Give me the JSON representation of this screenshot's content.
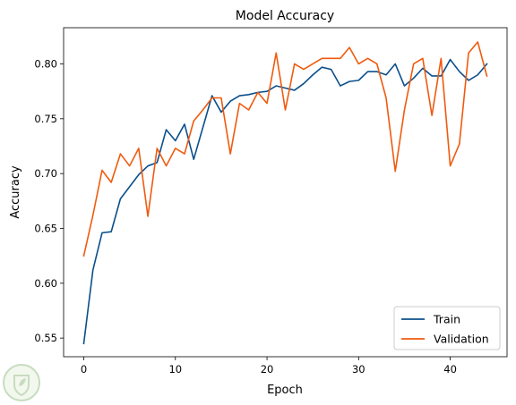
{
  "chart_data": {
    "type": "line",
    "title": "Model Accuracy",
    "xlabel": "Epoch",
    "ylabel": "Accuracy",
    "xlim": [
      -2.2,
      46.2
    ],
    "ylim": [
      0.533,
      0.833
    ],
    "x_ticks": [
      0,
      10,
      20,
      30,
      40
    ],
    "y_ticks": [
      0.55,
      0.6,
      0.65,
      0.7,
      0.75,
      0.8
    ],
    "y_tick_labels": [
      "0.55",
      "0.60",
      "0.65",
      "0.70",
      "0.75",
      "0.80"
    ],
    "grid": false,
    "legend_position": "lower-right",
    "x": [
      0,
      1,
      2,
      3,
      4,
      5,
      6,
      7,
      8,
      9,
      10,
      11,
      12,
      13,
      14,
      15,
      16,
      17,
      18,
      19,
      20,
      21,
      22,
      23,
      24,
      25,
      26,
      27,
      28,
      29,
      30,
      31,
      32,
      33,
      34,
      35,
      36,
      37,
      38,
      39,
      40,
      41,
      42,
      43,
      44
    ],
    "series": [
      {
        "name": "Train",
        "color": "#0b4f8c",
        "values": [
          0.545,
          0.612,
          0.646,
          0.647,
          0.677,
          0.688,
          0.699,
          0.707,
          0.71,
          0.74,
          0.73,
          0.745,
          0.713,
          0.742,
          0.771,
          0.756,
          0.766,
          0.771,
          0.772,
          0.774,
          0.775,
          0.78,
          0.778,
          0.776,
          0.782,
          0.79,
          0.797,
          0.795,
          0.78,
          0.784,
          0.785,
          0.793,
          0.793,
          0.79,
          0.8,
          0.78,
          0.787,
          0.796,
          0.789,
          0.789,
          0.804,
          0.793,
          0.785,
          0.79,
          0.8
        ]
      },
      {
        "name": "Validation",
        "color": "#f05a0e",
        "values": [
          0.625,
          0.662,
          0.703,
          0.692,
          0.718,
          0.707,
          0.723,
          0.661,
          0.723,
          0.707,
          0.723,
          0.718,
          0.748,
          0.758,
          0.769,
          0.769,
          0.718,
          0.764,
          0.758,
          0.774,
          0.764,
          0.81,
          0.758,
          0.8,
          0.795,
          0.8,
          0.805,
          0.805,
          0.805,
          0.815,
          0.8,
          0.805,
          0.8,
          0.769,
          0.702,
          0.758,
          0.8,
          0.805,
          0.753,
          0.805,
          0.707,
          0.727,
          0.81,
          0.82,
          0.789
        ]
      }
    ]
  },
  "watermark": {
    "icon": "leaf-shield-icon",
    "color": "#c7dcc0"
  }
}
